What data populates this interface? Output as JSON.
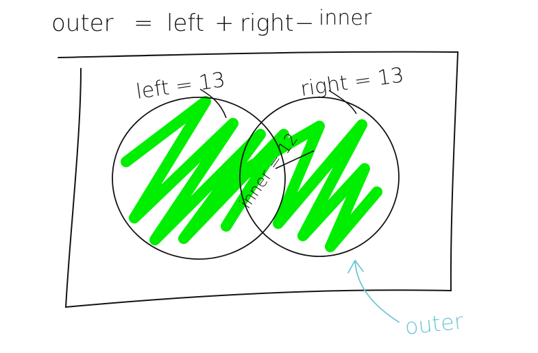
{
  "formula": {
    "lhs": "outer",
    "equals": "=",
    "term1": "left",
    "plus": "+",
    "term2": "right",
    "minus": "−",
    "term3": "inner"
  },
  "labels": {
    "left": "left = 13",
    "right": "right = 13",
    "inner": "inner = 12",
    "outer": "outer"
  },
  "colors": {
    "ink": "#111111",
    "fill": "#00ee00",
    "annotation": "#6cc6d6"
  }
}
